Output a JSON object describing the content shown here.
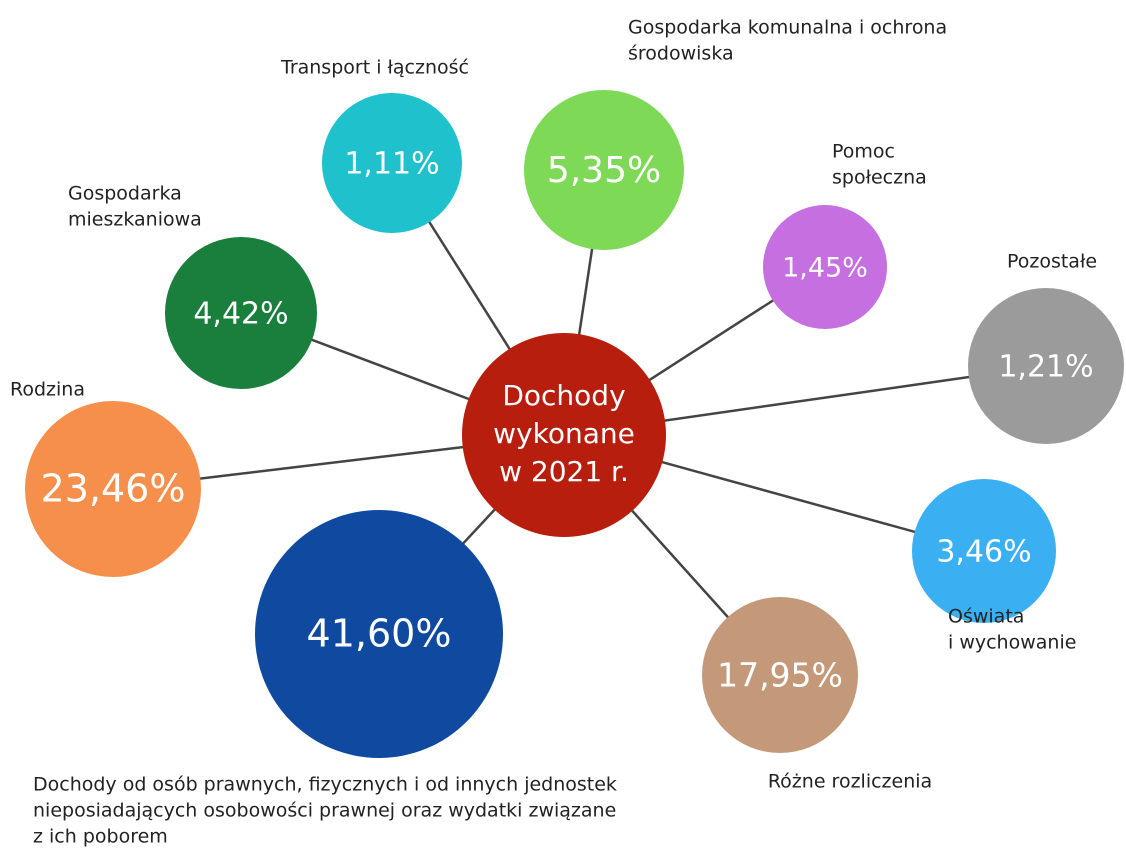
{
  "center": {
    "label": [
      "Dochody",
      "wykonane",
      "w 2021 r."
    ]
  },
  "nodes": [
    {
      "label": [
        "Transport i łączność"
      ],
      "value": "1,11%"
    },
    {
      "label": [
        "Gospodarka komunalna i ochrona",
        "środowiska"
      ],
      "value": "5,35%"
    },
    {
      "label": [
        "Pomoc",
        "społeczna"
      ],
      "value": "1,45%"
    },
    {
      "label": [
        "Pozostałe"
      ],
      "value": "1,21%"
    },
    {
      "label": [
        "Oświata",
        "i wychowanie"
      ],
      "value": "3,46%"
    },
    {
      "label": [
        "Różne rozliczenia"
      ],
      "value": "17,95%"
    },
    {
      "label": [
        "Dochody od osób prawnych, fizycznych i od innych jednostek",
        "nieposiadających osobowości prawnej oraz wydatki związane",
        "z ich poborem"
      ],
      "value": "41,60%"
    },
    {
      "label": [
        "Rodzina"
      ],
      "value": "23,46%"
    },
    {
      "label": [
        "Gospodarka",
        "mieszkaniowa"
      ],
      "value": "4,42%"
    }
  ]
}
